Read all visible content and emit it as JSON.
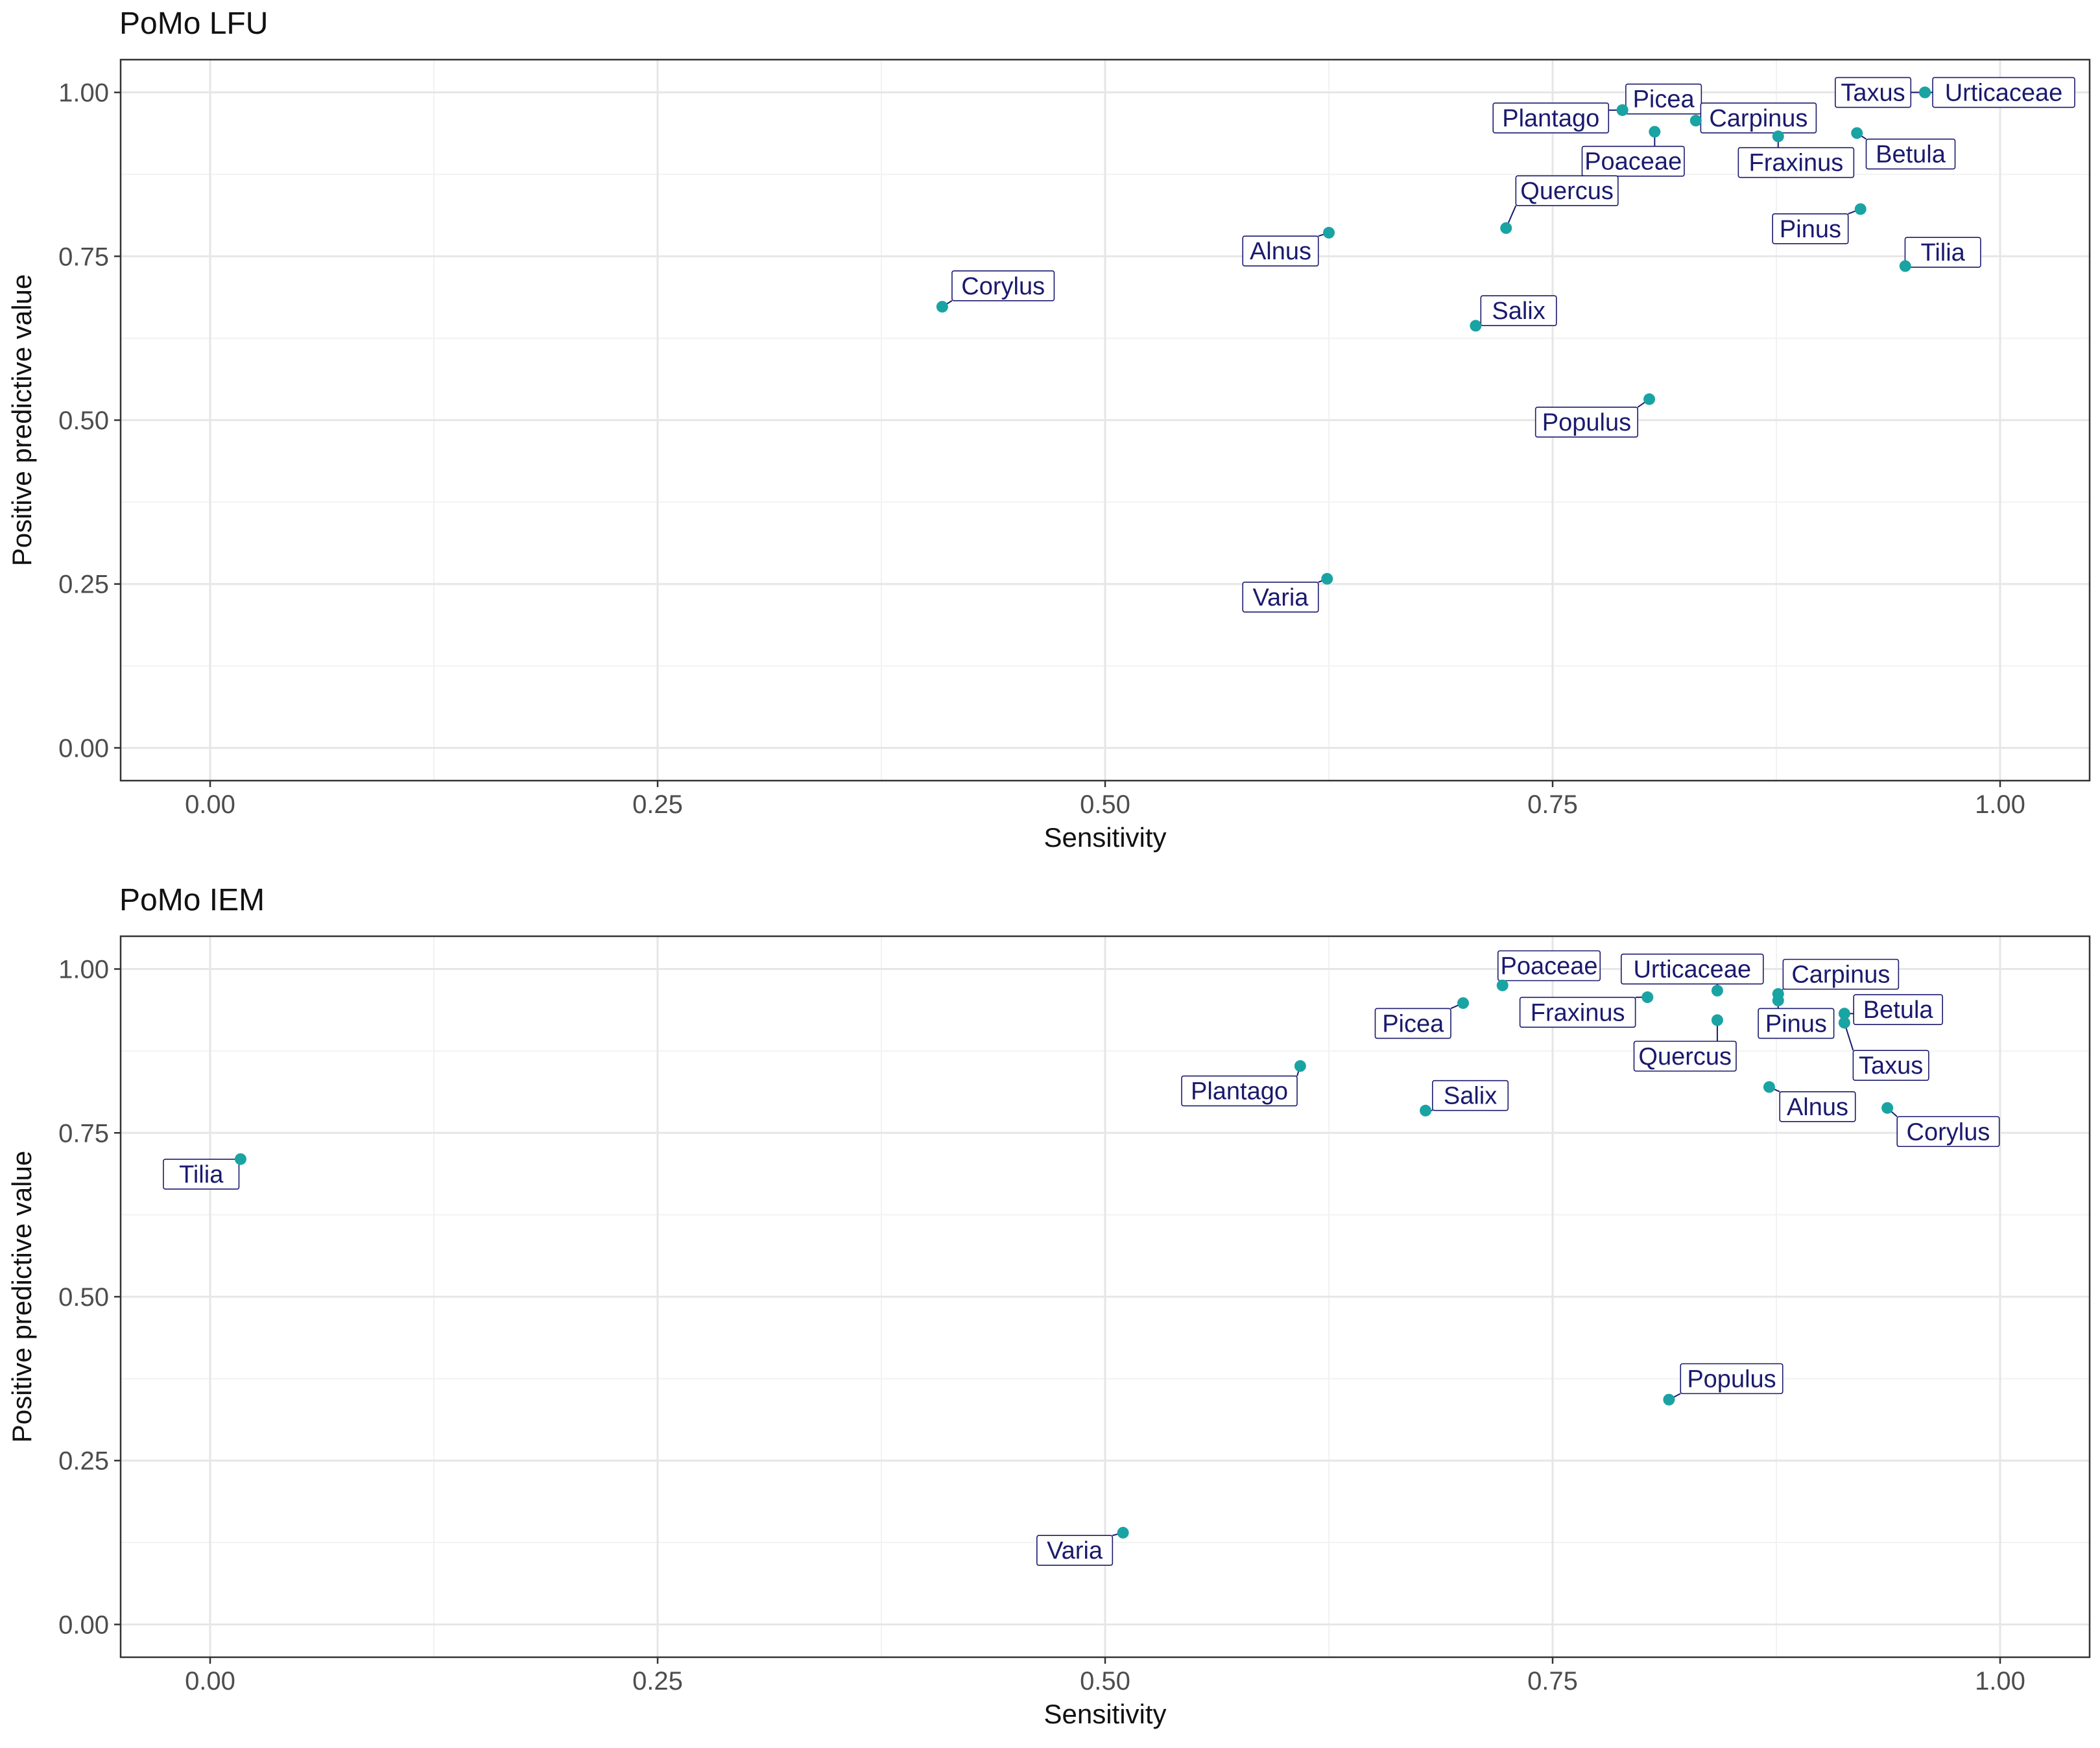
{
  "chart_data": [
    {
      "type": "scatter",
      "title": "PoMo LFU",
      "xlabel": "Sensitivity",
      "ylabel": "Positive predictive value",
      "xlim": [
        -0.05,
        1.05
      ],
      "ylim": [
        -0.05,
        1.05
      ],
      "xticks": [
        "0.00",
        "0.25",
        "0.50",
        "0.75",
        "1.00"
      ],
      "yticks": [
        "0.00",
        "0.25",
        "0.50",
        "0.75",
        "1.00"
      ],
      "grid": true,
      "point_color": "#1aa3a3",
      "label_color": "#1a1a6e",
      "points": [
        {
          "label": "Picea",
          "x": 0.789,
          "y": 0.973,
          "dx": 0.023,
          "dy": 0.017
        },
        {
          "label": "Plantago",
          "x": 0.789,
          "y": 0.973,
          "dx": -0.04,
          "dy": -0.012
        },
        {
          "label": "Carpinus",
          "x": 0.83,
          "y": 0.957,
          "dx": 0.035,
          "dy": 0.004
        },
        {
          "label": "Poaceae",
          "x": 0.807,
          "y": 0.94,
          "dx": -0.012,
          "dy": -0.045
        },
        {
          "label": "Taxus",
          "x": 0.958,
          "y": 1.0,
          "dx": -0.029,
          "dy": 0.0
        },
        {
          "label": "Urticaceae",
          "x": 0.958,
          "y": 1.0,
          "dx": 0.044,
          "dy": 0.0
        },
        {
          "label": "Fraxinus",
          "x": 0.876,
          "y": 0.933,
          "dx": 0.01,
          "dy": -0.04
        },
        {
          "label": "Betula",
          "x": 0.92,
          "y": 0.938,
          "dx": 0.03,
          "dy": -0.032
        },
        {
          "label": "Quercus",
          "x": 0.724,
          "y": 0.793,
          "dx": 0.034,
          "dy": 0.057
        },
        {
          "label": "Pinus",
          "x": 0.922,
          "y": 0.822,
          "dx": -0.028,
          "dy": -0.03
        },
        {
          "label": "Alnus",
          "x": 0.625,
          "y": 0.786,
          "dx": -0.027,
          "dy": -0.028
        },
        {
          "label": "Tilia",
          "x": 0.947,
          "y": 0.735,
          "dx": 0.021,
          "dy": 0.021
        },
        {
          "label": "Corylus",
          "x": 0.409,
          "y": 0.673,
          "dx": 0.034,
          "dy": 0.032
        },
        {
          "label": "Salix",
          "x": 0.707,
          "y": 0.644,
          "dx": 0.024,
          "dy": 0.023
        },
        {
          "label": "Populus",
          "x": 0.804,
          "y": 0.532,
          "dx": -0.035,
          "dy": -0.035
        },
        {
          "label": "Varia",
          "x": 0.624,
          "y": 0.258,
          "dx": -0.026,
          "dy": -0.028
        }
      ]
    },
    {
      "type": "scatter",
      "title": "PoMo IEM",
      "xlabel": "Sensitivity",
      "ylabel": "Positive predictive value",
      "xlim": [
        -0.05,
        1.05
      ],
      "ylim": [
        -0.05,
        1.05
      ],
      "xticks": [
        "0.00",
        "0.25",
        "0.50",
        "0.75",
        "1.00"
      ],
      "yticks": [
        "0.00",
        "0.25",
        "0.50",
        "0.75",
        "1.00"
      ],
      "grid": true,
      "point_color": "#1aa3a3",
      "label_color": "#1a1a6e",
      "points": [
        {
          "label": "Poaceae",
          "x": 0.722,
          "y": 0.975,
          "dx": 0.026,
          "dy": 0.03
        },
        {
          "label": "Picea",
          "x": 0.7,
          "y": 0.948,
          "dx": -0.028,
          "dy": -0.031
        },
        {
          "label": "Urticaceae",
          "x": 0.842,
          "y": 0.967,
          "dx": -0.014,
          "dy": 0.033
        },
        {
          "label": "Fraxinus",
          "x": 0.803,
          "y": 0.957,
          "dx": -0.039,
          "dy": -0.023
        },
        {
          "label": "Carpinus",
          "x": 0.876,
          "y": 0.962,
          "dx": 0.035,
          "dy": 0.03
        },
        {
          "label": "Quercus",
          "x": 0.842,
          "y": 0.922,
          "dx": -0.018,
          "dy": -0.055
        },
        {
          "label": "Pinus",
          "x": 0.876,
          "y": 0.952,
          "dx": 0.01,
          "dy": -0.035
        },
        {
          "label": "Betula",
          "x": 0.913,
          "y": 0.932,
          "dx": 0.03,
          "dy": 0.006
        },
        {
          "label": "Taxus",
          "x": 0.913,
          "y": 0.918,
          "dx": 0.026,
          "dy": -0.065
        },
        {
          "label": "Plantago",
          "x": 0.609,
          "y": 0.852,
          "dx": -0.034,
          "dy": -0.038
        },
        {
          "label": "Alnus",
          "x": 0.871,
          "y": 0.82,
          "dx": 0.027,
          "dy": -0.03
        },
        {
          "label": "Salix",
          "x": 0.679,
          "y": 0.784,
          "dx": 0.025,
          "dy": 0.023
        },
        {
          "label": "Corylus",
          "x": 0.937,
          "y": 0.788,
          "dx": 0.034,
          "dy": -0.036
        },
        {
          "label": "Tilia",
          "x": 0.017,
          "y": 0.71,
          "dx": -0.022,
          "dy": -0.023
        },
        {
          "label": "Populus",
          "x": 0.815,
          "y": 0.343,
          "dx": 0.035,
          "dy": 0.032
        },
        {
          "label": "Varia",
          "x": 0.51,
          "y": 0.14,
          "dx": -0.027,
          "dy": -0.027
        }
      ]
    }
  ]
}
